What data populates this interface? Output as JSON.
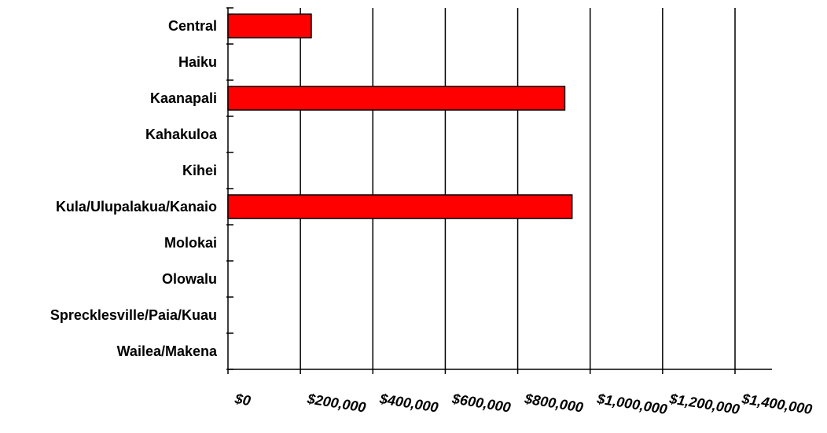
{
  "chart_data": {
    "type": "bar",
    "orientation": "horizontal",
    "title": "",
    "xlabel": "",
    "ylabel": "",
    "categories": [
      "Central",
      "Haiku",
      "Kaanapali",
      "Kahakuloa",
      "Kihei",
      "Kula/Ulupalakua/Kanaio",
      "Molokai",
      "Olowalu",
      "Sprecklesville/Paia/Kuau",
      "Wailea/Makena"
    ],
    "values": [
      230000,
      0,
      930000,
      0,
      0,
      950000,
      0,
      0,
      0,
      0
    ],
    "xlim": [
      0,
      1400000
    ],
    "x_ticks": [
      0,
      200000,
      400000,
      600000,
      800000,
      1000000,
      1200000,
      1400000
    ],
    "x_tick_labels": [
      "$0",
      "$200,000",
      "$400,000",
      "$600,000",
      "$800,000",
      "$1,000,000",
      "$1,200,000",
      "$1,400,000"
    ],
    "grid": "vertical",
    "legend": "none",
    "bar_color": "#ff0000",
    "bar_edge_color": "#000000"
  }
}
